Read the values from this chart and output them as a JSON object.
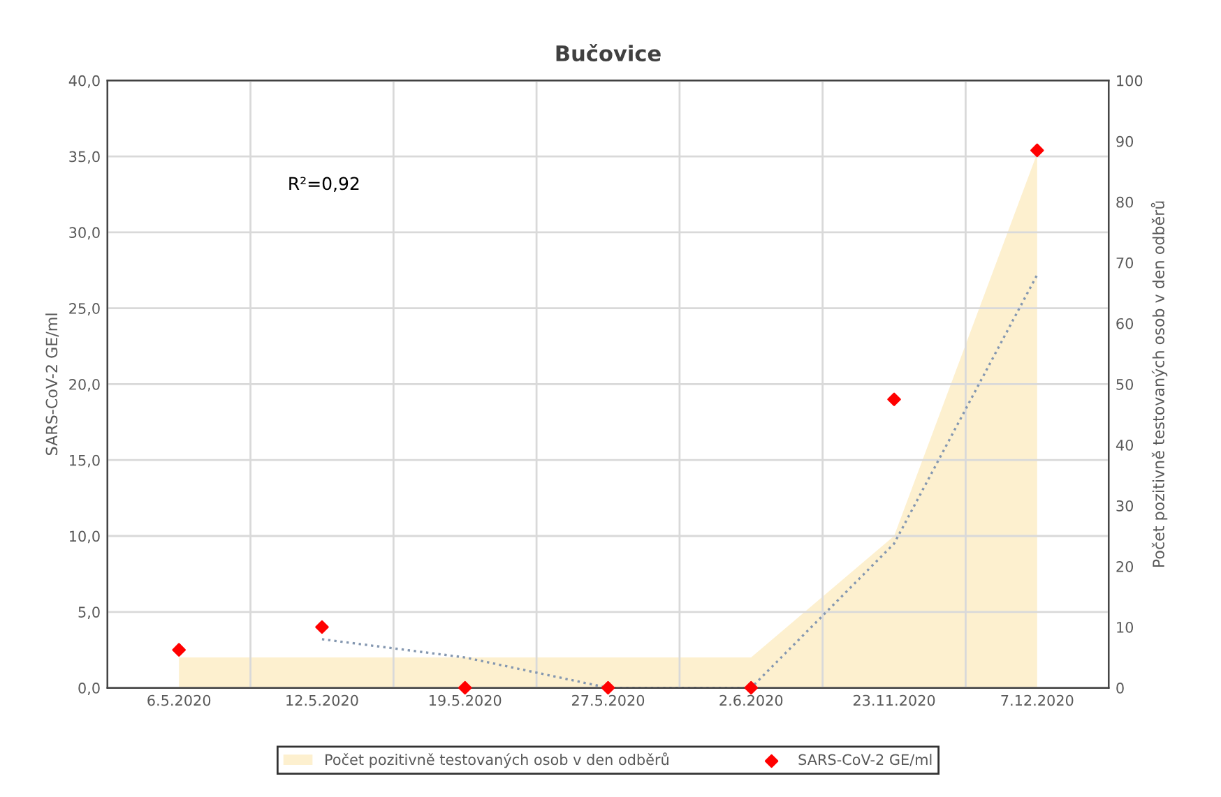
{
  "chart_data": {
    "type": "scatter",
    "title": "Bučovice",
    "ylabel": "SARS-CoV-2 GE/ml",
    "y2label": "Počet pozitivně testovaných osob v den odběrů",
    "categories": [
      "6.5.2020",
      "12.5.2020",
      "19.5.2020",
      "27.5.2020",
      "2.6.2020",
      "23.11.2020",
      "7.12.2020"
    ],
    "series": [
      {
        "name": "Počet pozitivně testovaných osob v den odběrů",
        "type": "area",
        "axis": "y2",
        "color": "#fdf0cf",
        "values": [
          5,
          5,
          5,
          5,
          5,
          25,
          88
        ]
      },
      {
        "name": "SARS-CoV-2 GE/ml",
        "color": "#ff0000",
        "marker": "diamond",
        "values": [
          2.5,
          4.0,
          0,
          0,
          0,
          19.0,
          35.4
        ]
      },
      {
        "type": "line",
        "color": "#8497b0",
        "line_style": "dotted",
        "values": [
          null,
          3.2,
          2.0,
          0,
          0,
          9.5,
          27.2
        ]
      }
    ],
    "ylim": [
      0,
      40
    ],
    "yticks": [
      {
        "value": 0,
        "label": "0,0"
      },
      {
        "value": 5,
        "label": "5,0"
      },
      {
        "value": 10,
        "label": "10,0"
      },
      {
        "value": 15,
        "label": "15,0"
      },
      {
        "value": 20,
        "label": "20,0"
      },
      {
        "value": 25,
        "label": "25,0"
      },
      {
        "value": 30,
        "label": "30,0"
      },
      {
        "value": 35,
        "label": "35,0"
      },
      {
        "value": 40,
        "label": "40,0"
      }
    ],
    "y2lim": [
      0,
      100
    ],
    "y2ticks": [
      0,
      10,
      20,
      30,
      40,
      50,
      60,
      70,
      80,
      90,
      100
    ],
    "annotations": [
      "R²=0,92"
    ],
    "grid": true,
    "legend": "bottom"
  }
}
